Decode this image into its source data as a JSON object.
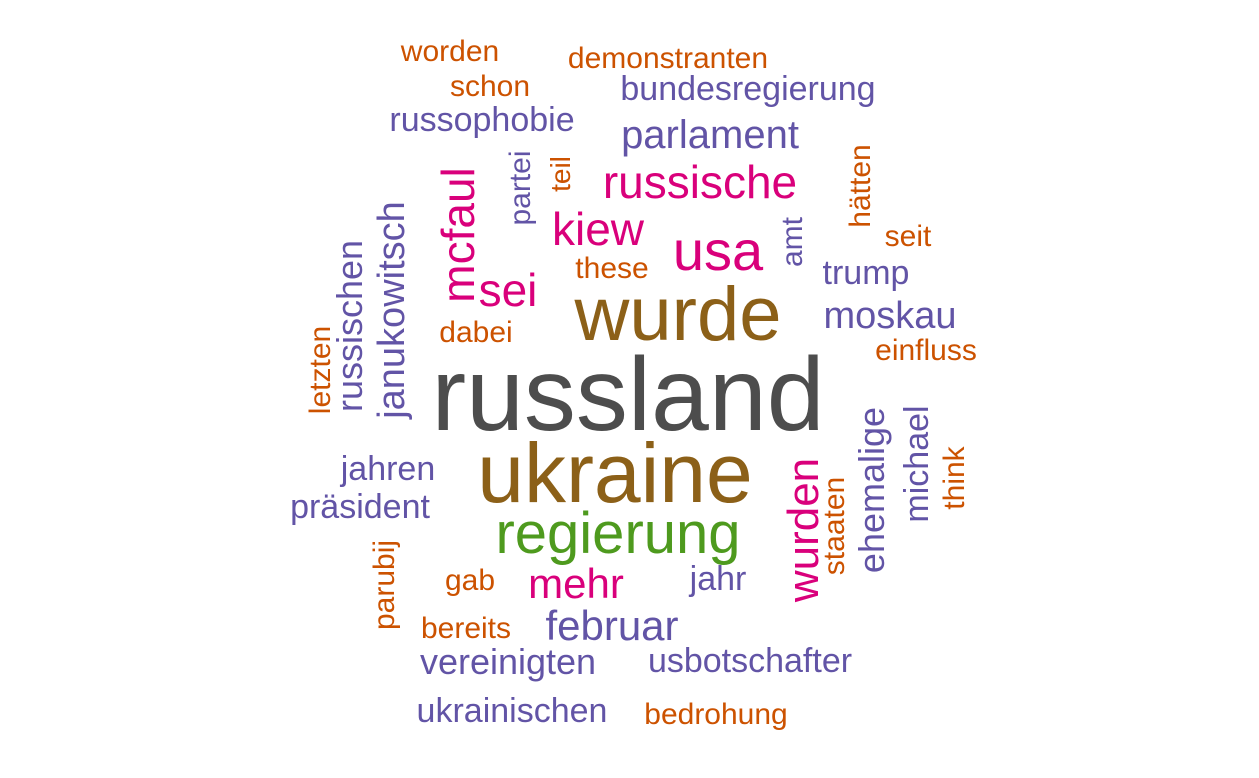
{
  "palette": {
    "gray": "#4d4d4d",
    "brown": "#8c6018",
    "green": "#4e9a1e",
    "magenta": "#d9007b",
    "purple": "#6254a6",
    "orange": "#cc5200"
  },
  "words": [
    {
      "text": "russland",
      "color": "gray"
    },
    {
      "text": "ukraine",
      "color": "brown"
    },
    {
      "text": "wurde",
      "color": "brown"
    },
    {
      "text": "regierung",
      "color": "green"
    },
    {
      "text": "usa",
      "color": "magenta"
    },
    {
      "text": "russische",
      "color": "magenta"
    },
    {
      "text": "kiew",
      "color": "magenta"
    },
    {
      "text": "mcfaul",
      "color": "magenta"
    },
    {
      "text": "sei",
      "color": "magenta"
    },
    {
      "text": "mehr",
      "color": "magenta"
    },
    {
      "text": "wurden",
      "color": "magenta"
    },
    {
      "text": "parlament",
      "color": "purple"
    },
    {
      "text": "bundesregierung",
      "color": "purple"
    },
    {
      "text": "russophobie",
      "color": "purple"
    },
    {
      "text": "moskau",
      "color": "purple"
    },
    {
      "text": "trump",
      "color": "purple"
    },
    {
      "text": "januko­witsch",
      "color": "purple"
    },
    {
      "text": "russischen",
      "color": "purple"
    },
    {
      "text": "jahren",
      "color": "purple"
    },
    {
      "text": "präsident",
      "color": "purple"
    },
    {
      "text": "februar",
      "color": "purple"
    },
    {
      "text": "jahr",
      "color": "purple"
    },
    {
      "text": "vereinigten",
      "color": "purple"
    },
    {
      "text": "usbotschafter",
      "color": "purple"
    },
    {
      "text": "ukrainischen",
      "color": "purple"
    },
    {
      "text": "partei",
      "color": "purple"
    },
    {
      "text": "amt",
      "color": "purple"
    },
    {
      "text": "ehemalige",
      "color": "purple"
    },
    {
      "text": "michael",
      "color": "purple"
    },
    {
      "text": "worden",
      "color": "orange"
    },
    {
      "text": "demonstranten",
      "color": "orange"
    },
    {
      "text": "schon",
      "color": "orange"
    },
    {
      "text": "teil",
      "color": "orange"
    },
    {
      "text": "hätten",
      "color": "orange"
    },
    {
      "text": "seit",
      "color": "orange"
    },
    {
      "text": "these",
      "color": "orange"
    },
    {
      "text": "dabei",
      "color": "orange"
    },
    {
      "text": "einfluss",
      "color": "orange"
    },
    {
      "text": "letzten",
      "color": "orange"
    },
    {
      "text": "think",
      "color": "orange"
    },
    {
      "text": "staaten",
      "color": "orange"
    },
    {
      "text": "gab",
      "color": "orange"
    },
    {
      "text": "parubij",
      "color": "orange"
    },
    {
      "text": "bereits",
      "color": "orange"
    },
    {
      "text": "bedrohung",
      "color": "orange"
    }
  ]
}
